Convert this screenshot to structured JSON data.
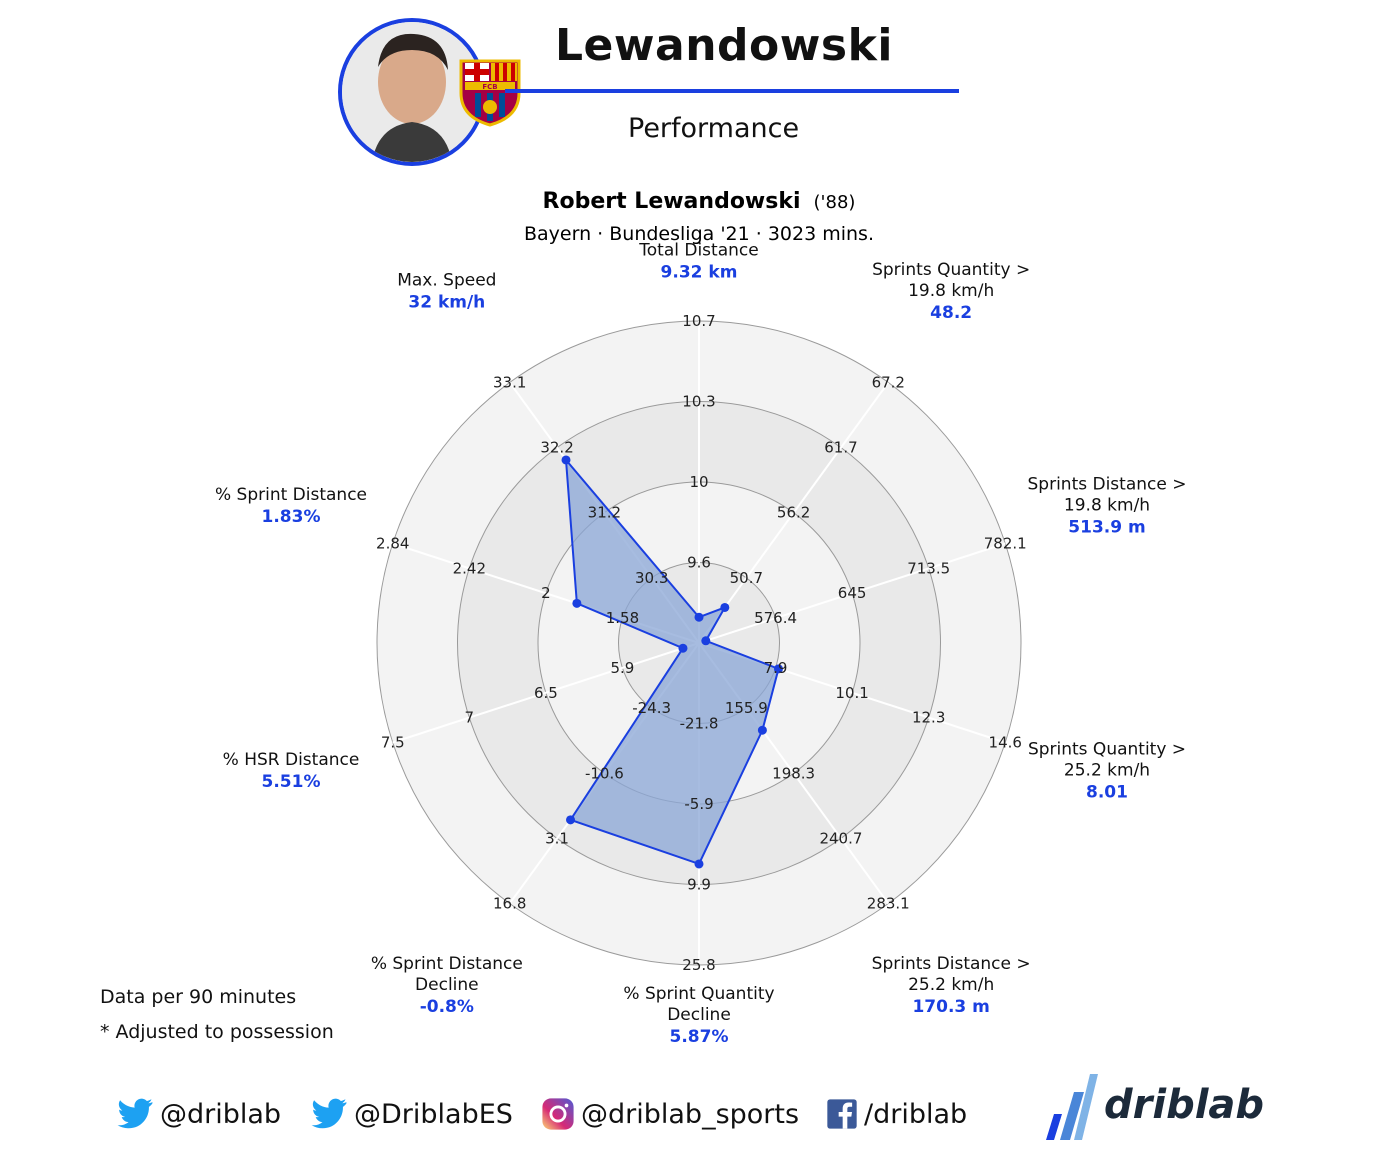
{
  "header": {
    "title": "Lewandowski",
    "subtitle": "Performance",
    "club_crest_text": "FCB"
  },
  "chart_data": {
    "type": "radar",
    "title": "Robert Lewandowski",
    "title_suffix": "('88)",
    "subtitle": "Bayern · Bundesliga '21 · 3023 mins.",
    "axes": [
      {
        "name": [
          "Total Distance"
        ],
        "display": "9.32 km",
        "value": 9.32,
        "ticks": [
          "9.6",
          "10",
          "10.3",
          "10.7"
        ],
        "tick_min": 9.2,
        "tick_max": 10.7
      },
      {
        "name": [
          "Sprints Quantity >",
          "19.8 km/h"
        ],
        "display": "48.2",
        "value": 48.2,
        "ticks": [
          "50.7",
          "56.2",
          "61.7",
          "67.2"
        ],
        "tick_min": 45.2,
        "tick_max": 67.2
      },
      {
        "name": [
          "Sprints Distance >",
          "19.8 km/h"
        ],
        "display": "513.9 m",
        "value": 513.9,
        "ticks": [
          "576.4",
          "645",
          "713.5",
          "782.1"
        ],
        "tick_min": 507.8,
        "tick_max": 782.1
      },
      {
        "name": [
          "Sprints Quantity >",
          "25.2 km/h"
        ],
        "display": "8.01",
        "value": 8.01,
        "ticks": [
          "7.9",
          "10.1",
          "12.3",
          "14.6"
        ],
        "tick_min": 5.7,
        "tick_max": 14.6
      },
      {
        "name": [
          "Sprints Distance >",
          "25.2 km/h"
        ],
        "display": "170.3 m",
        "value": 170.3,
        "ticks": [
          "155.9",
          "198.3",
          "240.7",
          "283.1"
        ],
        "tick_min": 113.5,
        "tick_max": 283.1
      },
      {
        "name": [
          "% Sprint Quantity",
          "Decline"
        ],
        "display": "5.87%",
        "value": 5.87,
        "ticks": [
          "-21.8",
          "-5.9",
          "9.9",
          "25.8"
        ],
        "tick_min": -37.7,
        "tick_max": 25.8
      },
      {
        "name": [
          "% Sprint Distance",
          "Decline"
        ],
        "display": "-0.8%",
        "value": -0.8,
        "ticks": [
          "-24.3",
          "-10.6",
          "3.1",
          "16.8"
        ],
        "tick_min": -38.0,
        "tick_max": 16.8
      },
      {
        "name": [
          "% HSR Distance"
        ],
        "display": "5.51%",
        "value": 5.51,
        "ticks": [
          "5.9",
          "6.5",
          "7",
          "7.5"
        ],
        "tick_min": 5.4,
        "tick_max": 7.5
      },
      {
        "name": [
          "% Sprint Distance"
        ],
        "display": "1.83%",
        "value": 1.83,
        "ticks": [
          "1.58",
          "2",
          "2.42",
          "2.84"
        ],
        "tick_min": 1.16,
        "tick_max": 2.84
      },
      {
        "name": [
          "Max. Speed"
        ],
        "display": "32 km/h",
        "value": 32,
        "ticks": [
          "30.3",
          "31.2",
          "32.2",
          "33.1"
        ],
        "tick_min": 29.4,
        "tick_max": 33.1
      }
    ],
    "colors": {
      "accent": "#1a3fe0",
      "fill": "#8aa6d6",
      "ring_outer": "#f1f1f1",
      "ring_inner": "#e6e6e6"
    }
  },
  "notes": {
    "line1": "Data per 90 minutes",
    "line2": "* Adjusted to possession"
  },
  "footer": {
    "twitter1": "@driblab",
    "twitter2": "@DriblabES",
    "instagram": "@driblab_sports",
    "facebook": "/driblab",
    "brand": "driblab"
  }
}
